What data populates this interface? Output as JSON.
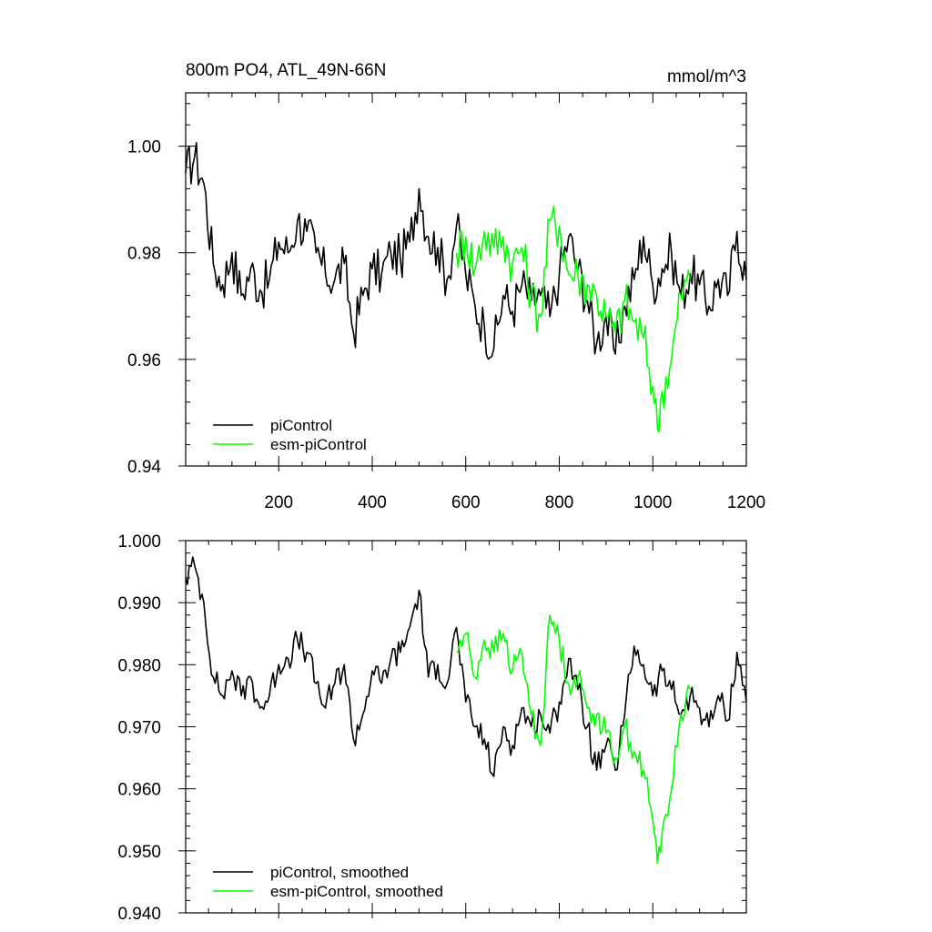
{
  "chart_data": [
    {
      "type": "line",
      "title": "800m PO4, ATL_49N-66N",
      "units": "mmol/m^3",
      "xlim": [
        1,
        1200
      ],
      "ylim": [
        0.94,
        1.01
      ],
      "x_ticks": [
        200,
        400,
        600,
        800,
        1000,
        1200
      ],
      "x_tick_labels": [
        "200",
        "400",
        "600",
        "800",
        "1000",
        "1200"
      ],
      "y_ticks": [
        0.94,
        0.96,
        0.98,
        1.0
      ],
      "y_tick_labels": [
        "0.94",
        "0.96",
        "0.98",
        "1.00"
      ],
      "grid": false,
      "legend_position": "bottom-left",
      "series": [
        {
          "name": "piControl",
          "color": "#000000",
          "x": [
            1,
            20,
            40,
            60,
            80,
            100,
            120,
            140,
            160,
            180,
            200,
            220,
            240,
            260,
            280,
            300,
            320,
            340,
            360,
            380,
            400,
            420,
            440,
            460,
            480,
            500,
            520,
            540,
            560,
            580,
            600,
            620,
            640,
            660,
            680,
            700,
            720,
            740,
            760,
            780,
            800,
            820,
            840,
            860,
            880,
            900,
            920,
            940,
            960,
            980,
            1000,
            1020,
            1040,
            1060,
            1080,
            1100,
            1120,
            1140,
            1160,
            1180,
            1200
          ],
          "values": [
            0.995,
            0.998,
            0.993,
            0.978,
            0.974,
            0.98,
            0.972,
            0.977,
            0.973,
            0.975,
            0.982,
            0.98,
            0.986,
            0.984,
            0.98,
            0.976,
            0.975,
            0.978,
            0.965,
            0.972,
            0.977,
            0.976,
            0.98,
            0.979,
            0.982,
            0.992,
            0.983,
            0.981,
            0.975,
            0.985,
            0.976,
            0.97,
            0.966,
            0.962,
            0.972,
            0.969,
            0.974,
            0.971,
            0.972,
            0.968,
            0.976,
            0.983,
            0.977,
            0.971,
            0.963,
            0.968,
            0.961,
            0.97,
            0.975,
            0.983,
            0.974,
            0.977,
            0.98,
            0.972,
            0.976,
            0.974,
            0.97,
            0.975,
            0.972,
            0.984,
            0.975
          ]
        },
        {
          "name": "esm-piControl",
          "color": "#00ff00",
          "x": [
            580,
            600,
            620,
            640,
            660,
            680,
            700,
            720,
            740,
            760,
            780,
            800,
            820,
            840,
            860,
            880,
            900,
            920,
            940,
            960,
            980,
            1000,
            1010,
            1020,
            1040,
            1060,
            1080
          ],
          "values": [
            0.98,
            0.983,
            0.977,
            0.984,
            0.981,
            0.983,
            0.978,
            0.981,
            0.972,
            0.968,
            0.986,
            0.985,
            0.976,
            0.976,
            0.974,
            0.972,
            0.968,
            0.965,
            0.971,
            0.967,
            0.964,
            0.955,
            0.947,
            0.954,
            0.96,
            0.972,
            0.975
          ]
        }
      ]
    },
    {
      "type": "line",
      "xlim": [
        1,
        1200
      ],
      "ylim": [
        0.94,
        1.0
      ],
      "x_ticks": [
        200,
        400,
        600,
        800,
        1000,
        1200
      ],
      "y_ticks": [
        0.94,
        0.95,
        0.96,
        0.97,
        0.98,
        0.99,
        1.0
      ],
      "y_tick_labels": [
        "0.940",
        "0.950",
        "0.960",
        "0.970",
        "0.980",
        "0.990",
        "1.000"
      ],
      "grid": false,
      "legend_position": "bottom-left",
      "series": [
        {
          "name": "piControl, smoothed",
          "color": "#000000",
          "x": [
            1,
            20,
            40,
            60,
            80,
            100,
            120,
            140,
            160,
            180,
            200,
            220,
            240,
            260,
            280,
            300,
            320,
            340,
            360,
            380,
            400,
            420,
            440,
            460,
            480,
            500,
            520,
            540,
            560,
            580,
            600,
            620,
            640,
            660,
            680,
            700,
            720,
            740,
            760,
            780,
            800,
            820,
            840,
            860,
            880,
            900,
            920,
            940,
            960,
            980,
            1000,
            1020,
            1040,
            1060,
            1080,
            1100,
            1120,
            1140,
            1160,
            1180,
            1200
          ],
          "values": [
            0.994,
            0.996,
            0.99,
            0.978,
            0.975,
            0.979,
            0.975,
            0.978,
            0.973,
            0.975,
            0.98,
            0.981,
            0.984,
            0.982,
            0.977,
            0.973,
            0.977,
            0.98,
            0.968,
            0.972,
            0.979,
            0.977,
            0.981,
            0.982,
            0.986,
            0.992,
            0.978,
            0.98,
            0.977,
            0.986,
            0.974,
            0.97,
            0.968,
            0.962,
            0.97,
            0.967,
            0.973,
            0.97,
            0.972,
            0.969,
            0.974,
            0.981,
            0.976,
            0.97,
            0.963,
            0.967,
            0.963,
            0.972,
            0.983,
            0.98,
            0.975,
            0.979,
            0.976,
            0.972,
            0.975,
            0.973,
            0.97,
            0.975,
            0.971,
            0.982,
            0.974
          ]
        },
        {
          "name": "esm-piControl, smoothed",
          "color": "#00ff00",
          "x": [
            580,
            600,
            620,
            640,
            660,
            680,
            700,
            720,
            740,
            760,
            780,
            800,
            820,
            840,
            860,
            880,
            900,
            920,
            940,
            960,
            980,
            1000,
            1010,
            1020,
            1040,
            1060,
            1080
          ],
          "values": [
            0.982,
            0.985,
            0.978,
            0.984,
            0.982,
            0.985,
            0.979,
            0.982,
            0.972,
            0.967,
            0.988,
            0.984,
            0.977,
            0.978,
            0.973,
            0.972,
            0.969,
            0.965,
            0.97,
            0.966,
            0.963,
            0.955,
            0.948,
            0.953,
            0.96,
            0.972,
            0.976
          ]
        }
      ]
    }
  ]
}
